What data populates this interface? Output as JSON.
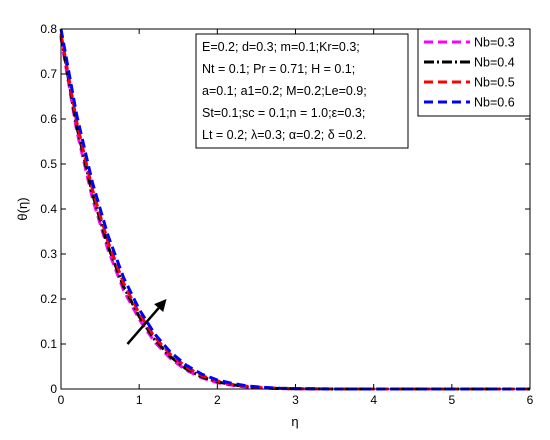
{
  "chart_data": {
    "type": "line",
    "xlabel": "η",
    "ylabel": "θ(η)",
    "xlim": [
      0,
      6
    ],
    "ylim": [
      0,
      0.8
    ],
    "x_ticks": [
      0,
      1,
      2,
      3,
      4,
      5,
      6
    ],
    "y_ticks": [
      0,
      0.1,
      0.2,
      0.3,
      0.4,
      0.5,
      0.6,
      0.7,
      0.8
    ],
    "x_tick_labels": [
      "0",
      "1",
      "2",
      "3",
      "4",
      "5",
      "6"
    ],
    "y_tick_labels": [
      "0",
      "0.1",
      "0.2",
      "0.3",
      "0.4",
      "0.5",
      "0.6",
      "0.7",
      "0.8"
    ],
    "grid": false,
    "legend_position": "top-right",
    "x": [
      0,
      0.2,
      0.4,
      0.6,
      0.8,
      1.0,
      1.2,
      1.4,
      1.6,
      1.8,
      2.0,
      2.2,
      2.4,
      2.6,
      2.8,
      3.0,
      3.5,
      4.0,
      5.0,
      6.0
    ],
    "series": [
      {
        "name": "Nb=0.3",
        "color": "#ff00ff",
        "dash": "dashed",
        "values": [
          0.78,
          0.575,
          0.425,
          0.31,
          0.22,
          0.155,
          0.104,
          0.068,
          0.042,
          0.025,
          0.014,
          0.008,
          0.004,
          0.002,
          0.001,
          0.0005,
          0.0,
          0.0,
          0.0,
          0.0
        ]
      },
      {
        "name": "Nb=0.4",
        "color": "#000000",
        "dash": "dashdot",
        "values": [
          0.785,
          0.585,
          0.435,
          0.318,
          0.228,
          0.161,
          0.109,
          0.072,
          0.045,
          0.027,
          0.016,
          0.009,
          0.005,
          0.0025,
          0.0012,
          0.0006,
          0.0,
          0.0,
          0.0,
          0.0
        ]
      },
      {
        "name": "Nb=0.5",
        "color": "#ff0000",
        "dash": "dashed",
        "values": [
          0.79,
          0.595,
          0.445,
          0.328,
          0.236,
          0.168,
          0.115,
          0.077,
          0.049,
          0.03,
          0.018,
          0.01,
          0.0055,
          0.003,
          0.0015,
          0.0007,
          0.0,
          0.0,
          0.0,
          0.0
        ]
      },
      {
        "name": "Nb=0.6",
        "color": "#0000ff",
        "dash": "dashed",
        "values": [
          0.8,
          0.61,
          0.46,
          0.342,
          0.248,
          0.177,
          0.122,
          0.082,
          0.053,
          0.033,
          0.02,
          0.012,
          0.0065,
          0.0035,
          0.0018,
          0.0009,
          0.0,
          0.0,
          0.0,
          0.0
        ]
      }
    ],
    "annotations": {
      "parameters": [
        "E=0.2; d=0.3; m=0.1;Kr=0.3;",
        "Nt = 0.1; Pr = 0.71;   H = 0.1;",
        "a=0.1; a1=0.2; M=0.2;Le=0.9;",
        "St=0.1;sc = 0.1;n = 1.0;ε=0.3;",
        "Lt = 0.2; λ=0.3; α=0.2; δ =0.2."
      ],
      "arrow": {
        "from": [
          0.85,
          0.1
        ],
        "to": [
          1.35,
          0.2
        ],
        "meaning": "increasing Nb"
      }
    }
  }
}
